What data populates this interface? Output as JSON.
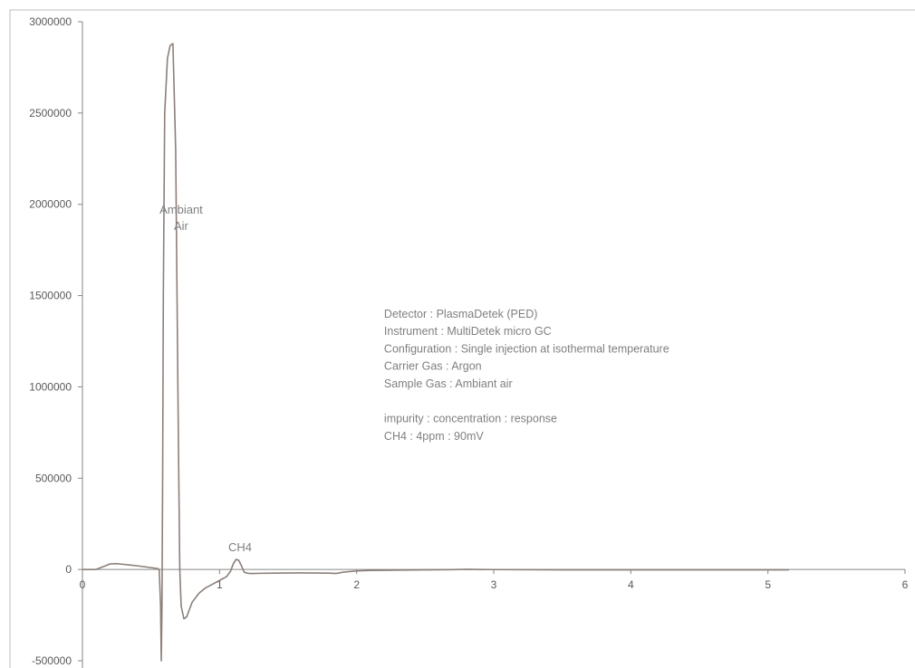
{
  "chart_data": {
    "type": "line",
    "xlim": [
      0,
      6
    ],
    "ylim": [
      -500000,
      3000000
    ],
    "x_ticks": [
      "0",
      "1",
      "2",
      "3",
      "4",
      "5",
      "6"
    ],
    "y_ticks": [
      "3000000",
      "2500000",
      "2000000",
      "1500000",
      "1000000",
      "500000",
      "0",
      "-500000"
    ],
    "grid": false,
    "legend": "none",
    "series": [
      {
        "color": "#8c7f79",
        "x": [
          0.0,
          0.1,
          0.15,
          0.2,
          0.25,
          0.3,
          0.35,
          0.4,
          0.45,
          0.5,
          0.55,
          0.56,
          0.57,
          0.575,
          0.58,
          0.585,
          0.59,
          0.6,
          0.62,
          0.64,
          0.66,
          0.68,
          0.69,
          0.7,
          0.71,
          0.72,
          0.74,
          0.76,
          0.78,
          0.8,
          0.85,
          0.9,
          0.95,
          1.0,
          1.05,
          1.08,
          1.1,
          1.12,
          1.14,
          1.16,
          1.18,
          1.2,
          1.22,
          1.25,
          1.3,
          1.4,
          1.6,
          1.8,
          1.85,
          1.9,
          2.0,
          2.1,
          2.5,
          2.7,
          2.8,
          2.9,
          3.0,
          3.5,
          4.0,
          4.5,
          5.0,
          5.15
        ],
        "y": [
          0,
          0,
          15000,
          30000,
          32000,
          28000,
          24000,
          20000,
          15000,
          10000,
          5000,
          0,
          -200000,
          -500000,
          -200000,
          500000,
          1500000,
          2500000,
          2800000,
          2870000,
          2880000,
          2300000,
          1500000,
          700000,
          0,
          -200000,
          -270000,
          -260000,
          -220000,
          -180000,
          -130000,
          -100000,
          -80000,
          -60000,
          -40000,
          -10000,
          30000,
          55000,
          50000,
          20000,
          -15000,
          -20000,
          -22000,
          -22000,
          -21000,
          -20000,
          -19000,
          -20000,
          -22000,
          -15000,
          -8000,
          -5000,
          -2000,
          -1000,
          1000,
          0,
          -500,
          -2000,
          -2000,
          -2000,
          -2000,
          -2000
        ]
      }
    ],
    "annotations": [
      {
        "lines": [
          "Ambiant",
          "Air"
        ],
        "x": 0.72,
        "y": 1950000
      },
      {
        "lines": [
          "CH4"
        ],
        "x": 1.15,
        "y": 100000
      }
    ],
    "text_block": {
      "x": 2.2,
      "y": 1380000,
      "lines": [
        "Detector : PlasmaDetek (PED)",
        "Instrument : MultiDetek micro GC",
        "Configuration : Single injection at isothermal temperature",
        "Carrier Gas : Argon",
        "Sample Gas :  Ambiant air",
        "",
        "impurity :  concentration : response",
        "CH4 : 4ppm  : 90mV"
      ]
    }
  }
}
